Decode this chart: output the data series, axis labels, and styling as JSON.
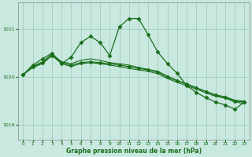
{
  "title": "Graphe pression niveau de la mer (hPa)",
  "bg_color": "#c8e8e0",
  "grid_color": "#a0c8b8",
  "line_color": "#1a6e1a",
  "x_range": [
    -0.5,
    23.5
  ],
  "y_range": [
    1018.7,
    1021.55
  ],
  "y_ticks": [
    1019,
    1020,
    1021
  ],
  "x_ticks": [
    0,
    1,
    2,
    3,
    4,
    5,
    6,
    7,
    8,
    9,
    10,
    11,
    12,
    13,
    14,
    15,
    16,
    17,
    18,
    19,
    20,
    21,
    22,
    23
  ],
  "series": [
    {
      "y": [
        1020.05,
        1020.22,
        1020.3,
        1020.45,
        1020.3,
        1020.25,
        1020.3,
        1020.32,
        1020.3,
        1020.28,
        1020.25,
        1020.22,
        1020.18,
        1020.15,
        1020.1,
        1020.0,
        1019.92,
        1019.85,
        1019.77,
        1019.7,
        1019.62,
        1019.58,
        1019.5,
        1019.48
      ],
      "marker": "D",
      "lw": 0.9,
      "ms": 2.5
    },
    {
      "y": [
        1020.05,
        1020.22,
        1020.32,
        1020.48,
        1020.32,
        1020.28,
        1020.35,
        1020.38,
        1020.35,
        1020.3,
        1020.28,
        1020.25,
        1020.2,
        1020.16,
        1020.12,
        1020.02,
        1019.93,
        1019.86,
        1019.78,
        1019.7,
        1019.63,
        1019.59,
        1019.52,
        1019.5
      ],
      "marker": null,
      "lw": 0.8,
      "ms": 0
    },
    {
      "y": [
        1020.05,
        1020.2,
        1020.28,
        1020.45,
        1020.28,
        1020.22,
        1020.28,
        1020.3,
        1020.28,
        1020.25,
        1020.22,
        1020.18,
        1020.15,
        1020.12,
        1020.07,
        1019.97,
        1019.89,
        1019.82,
        1019.75,
        1019.67,
        1019.6,
        1019.56,
        1019.48,
        1019.45
      ],
      "marker": null,
      "lw": 0.8,
      "ms": 0
    },
    {
      "y": [
        1020.05,
        1020.25,
        1020.38,
        1020.5,
        1020.28,
        1020.42,
        1020.72,
        1020.85,
        1020.72,
        1020.45,
        1021.05,
        1021.22,
        1021.22,
        1020.88,
        1020.52,
        1020.28,
        1020.08,
        1019.82,
        1019.68,
        1019.57,
        1019.48,
        1019.42,
        1019.33,
        1019.48
      ],
      "marker": "D",
      "lw": 0.9,
      "ms": 2.5
    }
  ]
}
